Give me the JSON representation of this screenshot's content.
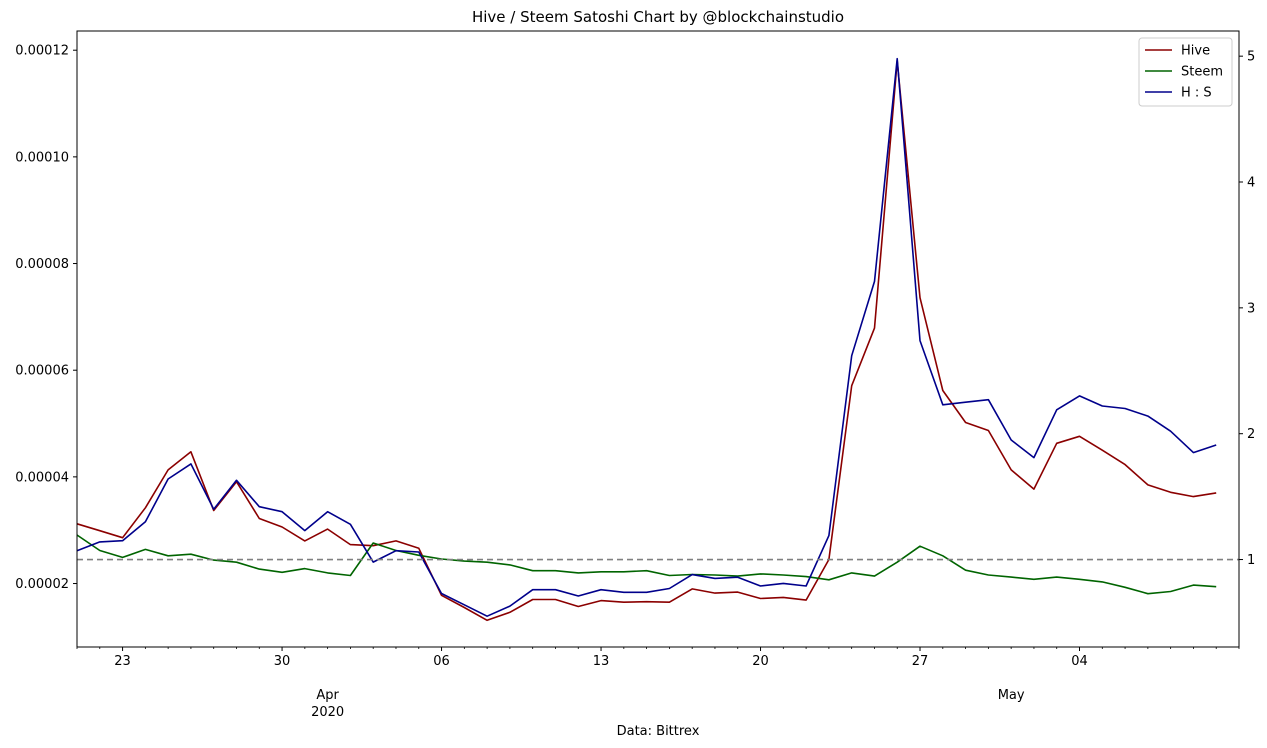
{
  "chart_data": {
    "type": "line",
    "title": "Hive / Steem Satoshi Chart by @blockchainstudio",
    "xlabel": "Data: Bittrex",
    "ylabel_left": "",
    "ylabel_right": "",
    "x_start": "2020-03-21",
    "x_end": "2020-05-11",
    "x_major_ticks": [
      {
        "date": "2020-03-23",
        "label": "23"
      },
      {
        "date": "2020-03-30",
        "label": "30"
      },
      {
        "date": "2020-04-06",
        "label": "06"
      },
      {
        "date": "2020-04-13",
        "label": "13"
      },
      {
        "date": "2020-04-20",
        "label": "20"
      },
      {
        "date": "2020-04-27",
        "label": "27"
      },
      {
        "date": "2020-05-04",
        "label": "04"
      }
    ],
    "x_month_labels": [
      {
        "date": "2020-04-01",
        "label": "Apr",
        "sublabel": "2020"
      },
      {
        "date": "2020-05-01",
        "label": "May",
        "sublabel": ""
      }
    ],
    "ylim_left": [
      8.1e-06,
      0.0001236
    ],
    "yticks_left": [
      "0.00002",
      "0.00004",
      "0.00006",
      "0.00008",
      "0.00010",
      "0.00012"
    ],
    "yticks_left_values": [
      2e-05,
      4e-05,
      6e-05,
      8e-05,
      0.0001,
      0.00012
    ],
    "ylim_right": [
      0.305,
      5.2
    ],
    "yticks_right": [
      "1",
      "2",
      "3",
      "4",
      "5"
    ],
    "yticks_right_values": [
      1,
      2,
      3,
      4,
      5
    ],
    "reference_line": {
      "axis": "right",
      "value": 1,
      "style": "dashed",
      "color": "#808080"
    },
    "legend_position": "upper right",
    "grid": false,
    "series": [
      {
        "name": "Hive",
        "axis": "left",
        "color": "#8b0000",
        "values": [
          3.12e-05,
          2.99e-05,
          2.86e-05,
          3.42e-05,
          4.13e-05,
          4.47e-05,
          3.37e-05,
          3.91e-05,
          3.22e-05,
          3.06e-05,
          2.8e-05,
          3.02e-05,
          2.73e-05,
          2.71e-05,
          2.8e-05,
          2.66e-05,
          1.78e-05,
          1.55e-05,
          1.31e-05,
          1.46e-05,
          1.7e-05,
          1.7e-05,
          1.57e-05,
          1.68e-05,
          1.65e-05,
          1.66e-05,
          1.65e-05,
          1.9e-05,
          1.82e-05,
          1.84e-05,
          1.72e-05,
          1.74e-05,
          1.69e-05,
          2.45e-05,
          5.71e-05,
          6.79e-05,
          0.000118,
          7.36e-05,
          5.62e-05,
          5.02e-05,
          4.87e-05,
          4.13e-05,
          3.77e-05,
          4.63e-05,
          4.76e-05,
          4.5e-05,
          4.23e-05,
          3.85e-05,
          3.71e-05,
          3.63e-05,
          3.7e-05
        ]
      },
      {
        "name": "Steem",
        "axis": "left",
        "color": "#006400",
        "values": [
          2.91e-05,
          2.62e-05,
          2.49e-05,
          2.64e-05,
          2.52e-05,
          2.55e-05,
          2.44e-05,
          2.4e-05,
          2.27e-05,
          2.21e-05,
          2.28e-05,
          2.2e-05,
          2.15e-05,
          2.76e-05,
          2.62e-05,
          2.53e-05,
          2.46e-05,
          2.42e-05,
          2.4e-05,
          2.35e-05,
          2.24e-05,
          2.24e-05,
          2.2e-05,
          2.22e-05,
          2.22e-05,
          2.24e-05,
          2.15e-05,
          2.17e-05,
          2.16e-05,
          2.14e-05,
          2.18e-05,
          2.16e-05,
          2.13e-05,
          2.07e-05,
          2.2e-05,
          2.14e-05,
          2.4e-05,
          2.7e-05,
          2.52e-05,
          2.25e-05,
          2.16e-05,
          2.12e-05,
          2.08e-05,
          2.12e-05,
          2.08e-05,
          2.03e-05,
          1.93e-05,
          1.81e-05,
          1.85e-05,
          1.97e-05,
          1.94e-05
        ]
      },
      {
        "name": "H : S",
        "axis": "right",
        "color": "#00008b",
        "values": [
          1.07,
          1.14,
          1.15,
          1.3,
          1.64,
          1.76,
          1.4,
          1.63,
          1.42,
          1.38,
          1.23,
          1.38,
          1.28,
          0.98,
          1.07,
          1.06,
          0.73,
          0.64,
          0.55,
          0.63,
          0.76,
          0.76,
          0.71,
          0.76,
          0.74,
          0.74,
          0.77,
          0.88,
          0.85,
          0.86,
          0.79,
          0.81,
          0.79,
          1.19,
          2.62,
          3.21,
          4.98,
          2.74,
          2.23,
          2.25,
          2.27,
          1.95,
          1.81,
          2.19,
          2.3,
          2.22,
          2.2,
          2.14,
          2.02,
          1.85,
          1.91
        ]
      }
    ]
  }
}
